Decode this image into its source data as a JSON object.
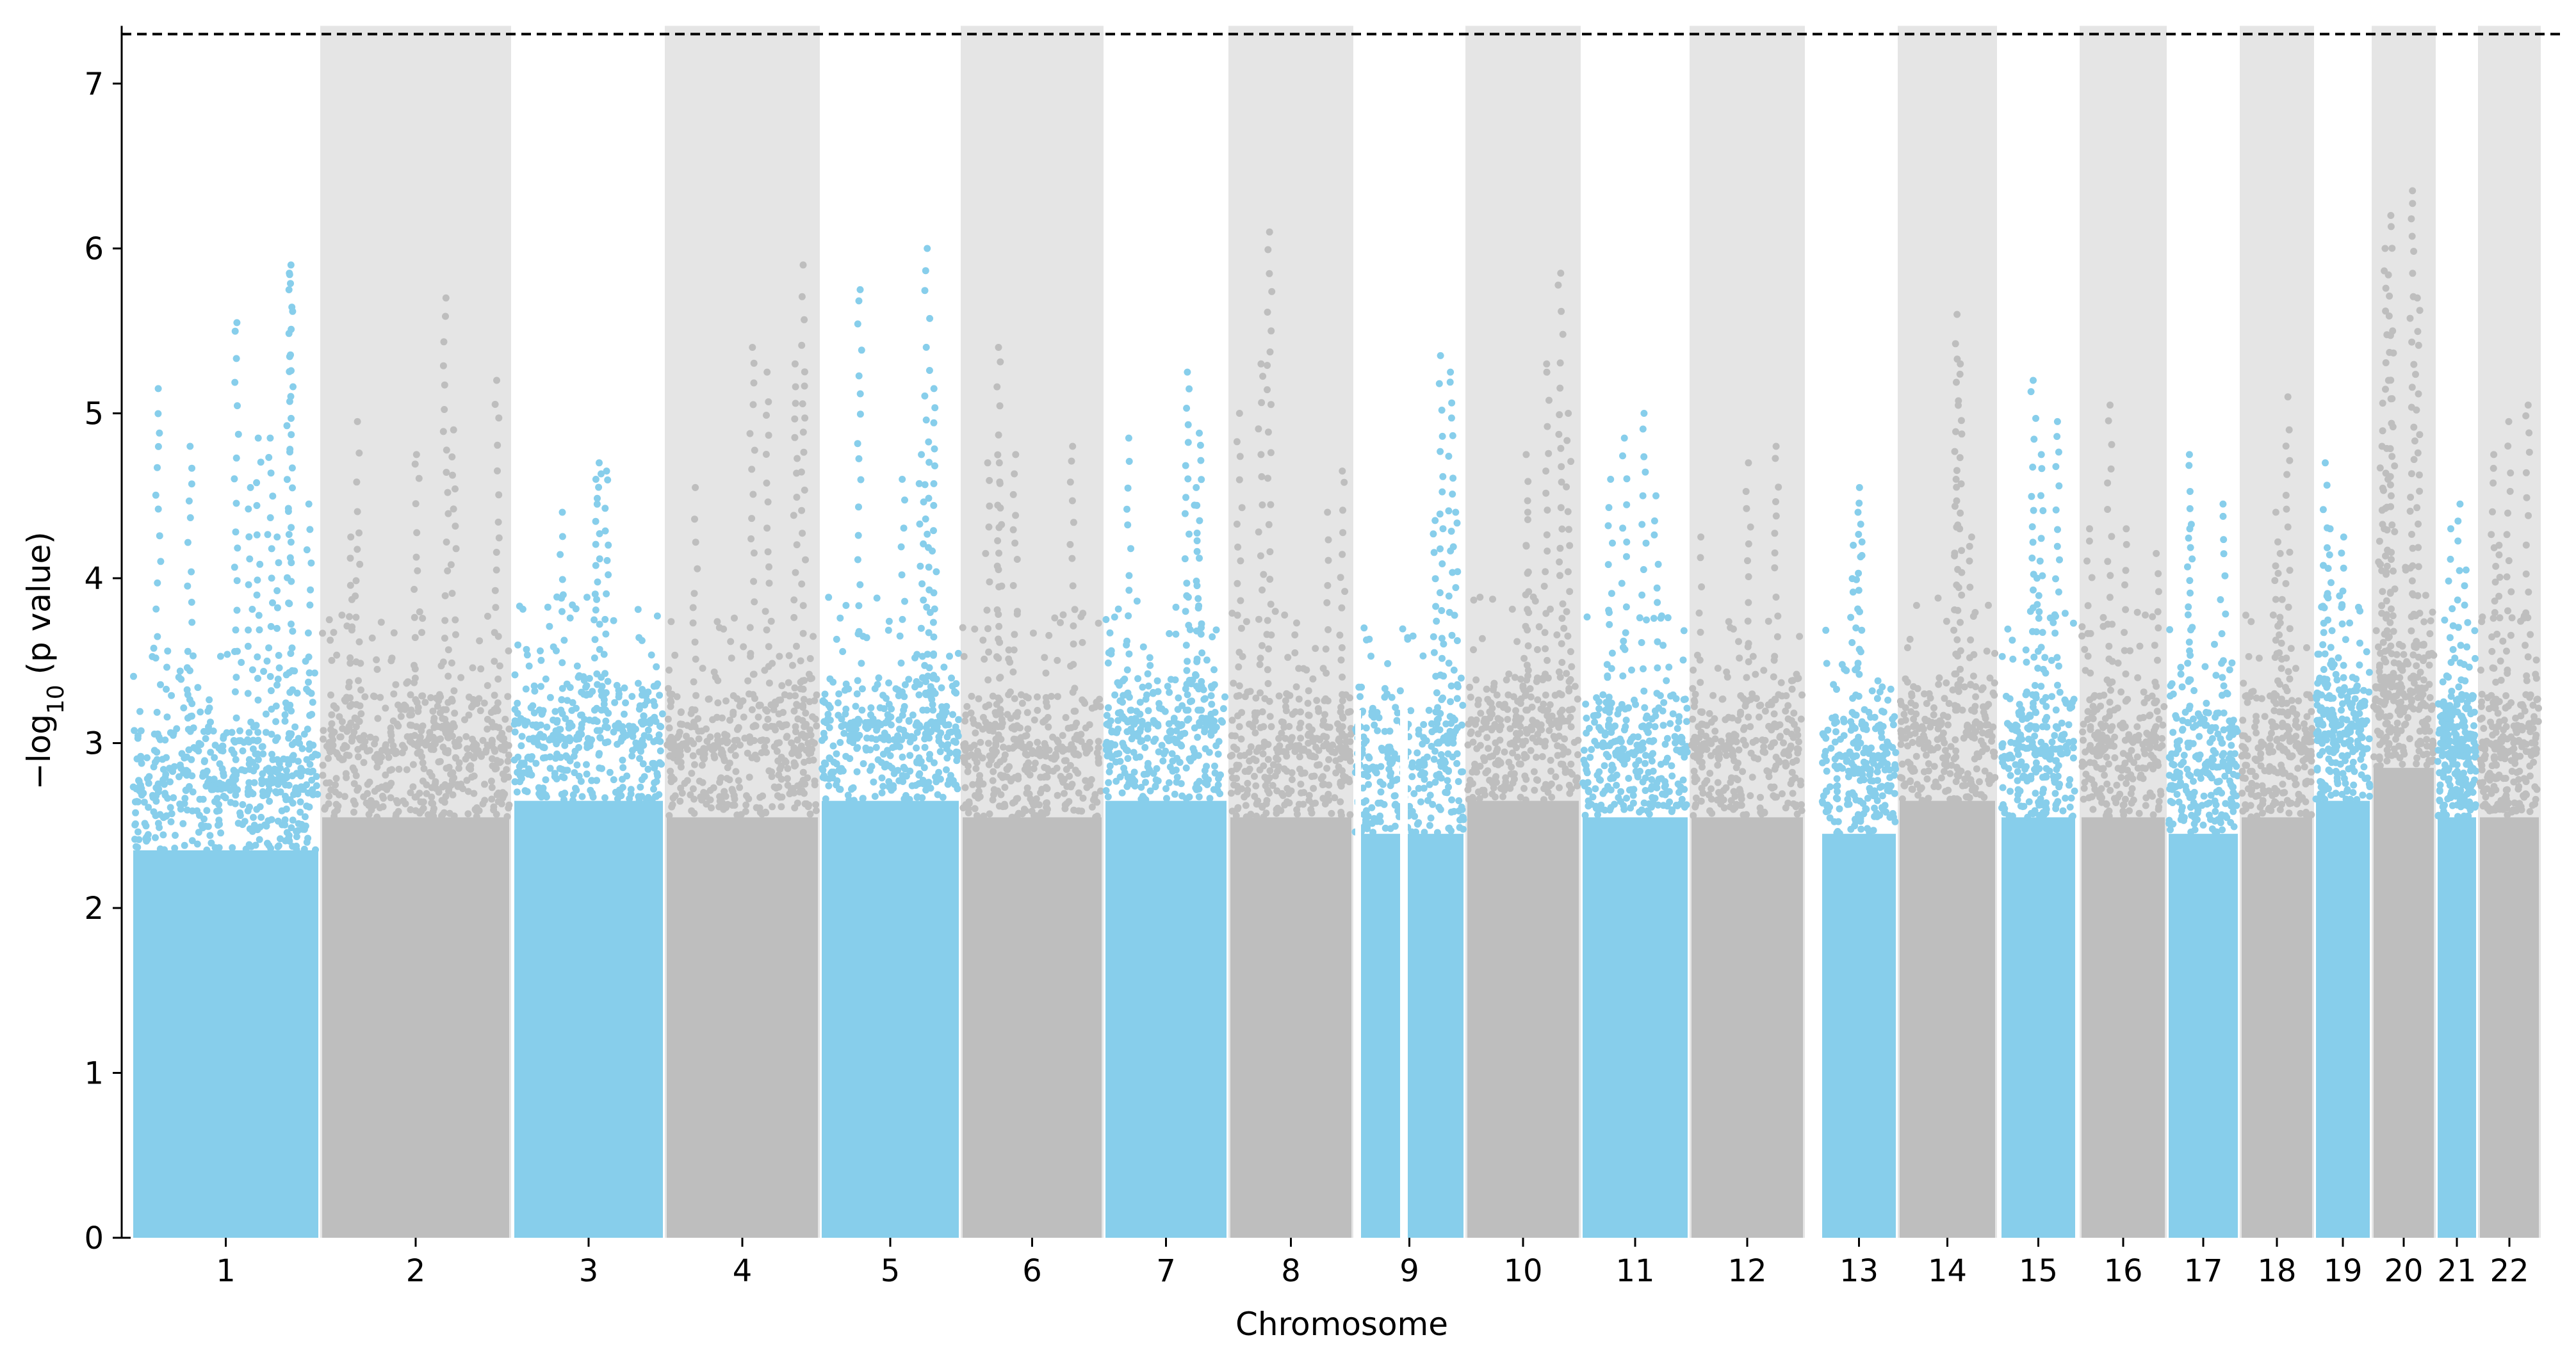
{
  "chart_data": {
    "type": "scatter",
    "subtype": "manhattan",
    "title": "",
    "xlabel": "Chromosome",
    "ylabel_prefix": "−log",
    "ylabel_subscript": "10",
    "ylabel_suffix": " (p value)",
    "ylim": [
      0,
      7.35
    ],
    "yticks": [
      0,
      1,
      2,
      3,
      4,
      5,
      6,
      7
    ],
    "threshold_line": {
      "y": 7.3,
      "style": "dashed",
      "color": "#000000"
    },
    "alternating_colors": [
      "#87CEEB",
      "#BEBEBE"
    ],
    "shade_color": "#E5E5E5",
    "shaded_chromosomes": "even",
    "grid": false,
    "legend": "none",
    "chromosomes": [
      {
        "label": "1",
        "bulk_top": 2.7,
        "peaks": [
          4.25,
          5.15,
          4.85,
          4.55,
          4.45,
          5.9,
          5.85,
          5.55,
          4.85,
          4.8
        ]
      },
      {
        "label": "2",
        "bulk_top": 2.9,
        "peaks": [
          5.7,
          5.2,
          4.9,
          4.75,
          4.95,
          4.25
        ]
      },
      {
        "label": "3",
        "bulk_top": 3.0,
        "peaks": [
          4.6,
          4.7,
          4.4,
          4.65
        ]
      },
      {
        "label": "4",
        "bulk_top": 2.9,
        "peaks": [
          4.55,
          5.9,
          5.3,
          5.25,
          5.4
        ]
      },
      {
        "label": "5",
        "bulk_top": 3.0,
        "peaks": [
          5.15,
          6.0,
          5.75,
          4.75,
          4.6
        ]
      },
      {
        "label": "6",
        "bulk_top": 2.9,
        "peaks": [
          4.75,
          4.8,
          4.7,
          5.4,
          4.7
        ]
      },
      {
        "label": "7",
        "bulk_top": 3.0,
        "peaks": [
          5.25,
          4.85,
          4.88,
          4.55
        ]
      },
      {
        "label": "8",
        "bulk_top": 2.9,
        "peaks": [
          4.65,
          5.0,
          6.1,
          5.3,
          4.4
        ]
      },
      {
        "label": "9",
        "bulk_top": 2.8,
        "peaks": [
          4.4,
          5.35,
          5.25,
          4.35
        ]
      },
      {
        "label": "10",
        "bulk_top": 3.0,
        "peaks": [
          4.75,
          5.85,
          5.3,
          5.0,
          4.4
        ]
      },
      {
        "label": "11",
        "bulk_top": 2.9,
        "peaks": [
          4.5,
          5.0,
          4.85,
          4.6
        ]
      },
      {
        "label": "12",
        "bulk_top": 2.9,
        "peaks": [
          4.8,
          4.7,
          4.25
        ]
      },
      {
        "label": "13",
        "bulk_top": 2.8,
        "peaks": [
          4.4,
          4.55,
          4.2
        ]
      },
      {
        "label": "14",
        "bulk_top": 3.0,
        "peaks": [
          5.6,
          5.3,
          4.6,
          4.25
        ]
      },
      {
        "label": "15",
        "bulk_top": 2.9,
        "peaks": [
          5.2,
          4.95,
          4.75,
          4.0
        ]
      },
      {
        "label": "16",
        "bulk_top": 2.9,
        "peaks": [
          4.15,
          4.3,
          5.05,
          4.3
        ]
      },
      {
        "label": "17",
        "bulk_top": 2.8,
        "peaks": [
          4.3,
          4.45,
          4.75
        ]
      },
      {
        "label": "18",
        "bulk_top": 2.9,
        "peaks": [
          4.4,
          5.1,
          4.15
        ]
      },
      {
        "label": "19",
        "bulk_top": 3.0,
        "peaks": [
          4.25,
          4.7,
          4.3
        ]
      },
      {
        "label": "20",
        "bulk_top": 3.2,
        "peaks": [
          6.35,
          6.2,
          6.0,
          5.7,
          5.5,
          4.8,
          4.6
        ]
      },
      {
        "label": "21",
        "bulk_top": 2.9,
        "peaks": [
          4.45,
          4.3,
          4.05
        ]
      },
      {
        "label": "22",
        "bulk_top": 2.9,
        "peaks": [
          5.05,
          4.95,
          4.75,
          4.2
        ]
      }
    ]
  }
}
